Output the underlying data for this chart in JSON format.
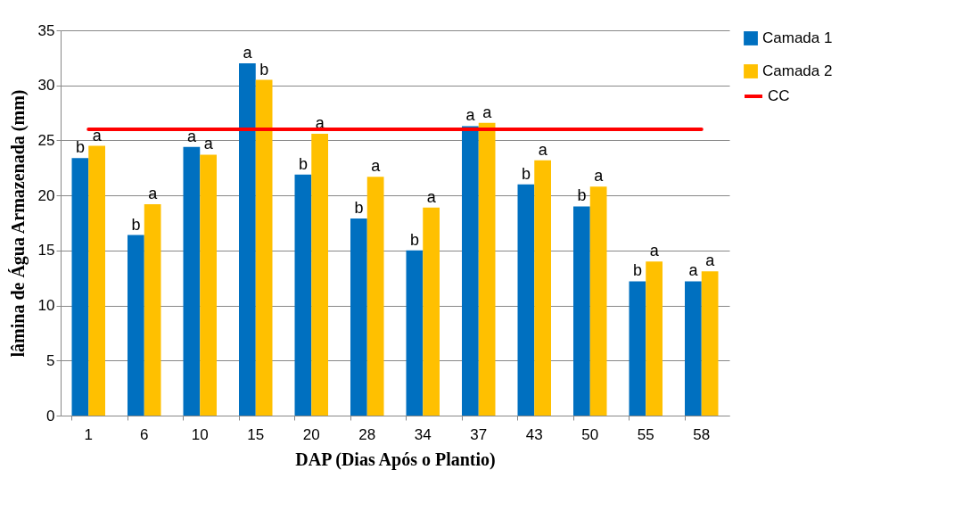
{
  "chart_data": {
    "type": "bar",
    "xlabel": "DAP (Dias Após o Plantio)",
    "ylabel": "lâmina de Água Armazenada (mm)",
    "categories": [
      "1",
      "6",
      "10",
      "15",
      "20",
      "28",
      "34",
      "37",
      "43",
      "50",
      "55",
      "58"
    ],
    "series": [
      {
        "name": "Camada 1",
        "color": "#0070c0",
        "values": [
          23.4,
          16.4,
          24.4,
          32.0,
          21.9,
          17.9,
          15.0,
          26.3,
          21.0,
          19.0,
          12.2,
          12.2
        ]
      },
      {
        "name": "Camada 2",
        "color": "#ffc000",
        "values": [
          24.5,
          19.2,
          23.7,
          30.5,
          25.6,
          21.7,
          18.9,
          26.6,
          23.2,
          20.8,
          14.0,
          13.1
        ]
      },
      {
        "name": "CC",
        "type": "line",
        "color": "#ff0000",
        "values": [
          26,
          26,
          26,
          26,
          26,
          26,
          26,
          26,
          26,
          26,
          26,
          26
        ]
      }
    ],
    "ylim": [
      0,
      35
    ],
    "yticks": [
      0,
      5,
      10,
      15,
      20,
      25,
      30,
      35
    ],
    "grid": "y",
    "legend": "right",
    "annotations": [
      {
        "text": "b",
        "x": "1",
        "y": 23.4
      },
      {
        "text": "a",
        "x": "1",
        "y": 24.5
      },
      {
        "text": "b",
        "x": "6",
        "y": 16.4
      },
      {
        "text": "a",
        "x": "6",
        "y": 19.2
      },
      {
        "text": "a",
        "x": "10",
        "y": 24.4
      },
      {
        "text": "a",
        "x": "10",
        "y": 23.7
      },
      {
        "text": "a",
        "x": "15",
        "y": 32.0
      },
      {
        "text": "b",
        "x": "15",
        "y": 30.5
      },
      {
        "text": "b",
        "x": "20",
        "y": 21.9
      },
      {
        "text": "a",
        "x": "20",
        "y": 25.6
      },
      {
        "text": "b",
        "x": "28",
        "y": 17.9
      },
      {
        "text": "a",
        "x": "28",
        "y": 21.7
      },
      {
        "text": "b",
        "x": "34",
        "y": 15.0
      },
      {
        "text": "a",
        "x": "34",
        "y": 18.9
      },
      {
        "text": "a",
        "x": "37",
        "y": 26.3
      },
      {
        "text": "a",
        "x": "37",
        "y": 26.6
      },
      {
        "text": "b",
        "x": "43",
        "y": 21.0
      },
      {
        "text": "a",
        "x": "43",
        "y": 23.2
      },
      {
        "text": "b",
        "x": "50",
        "y": 19.0
      },
      {
        "text": "a",
        "x": "50",
        "y": 20.8
      },
      {
        "text": "b",
        "x": "55",
        "y": 12.2
      },
      {
        "text": "a",
        "x": "55",
        "y": 14.0
      },
      {
        "text": "a",
        "x": "58",
        "y": 12.2
      },
      {
        "text": "a",
        "x": "58",
        "y": 13.1
      }
    ]
  }
}
